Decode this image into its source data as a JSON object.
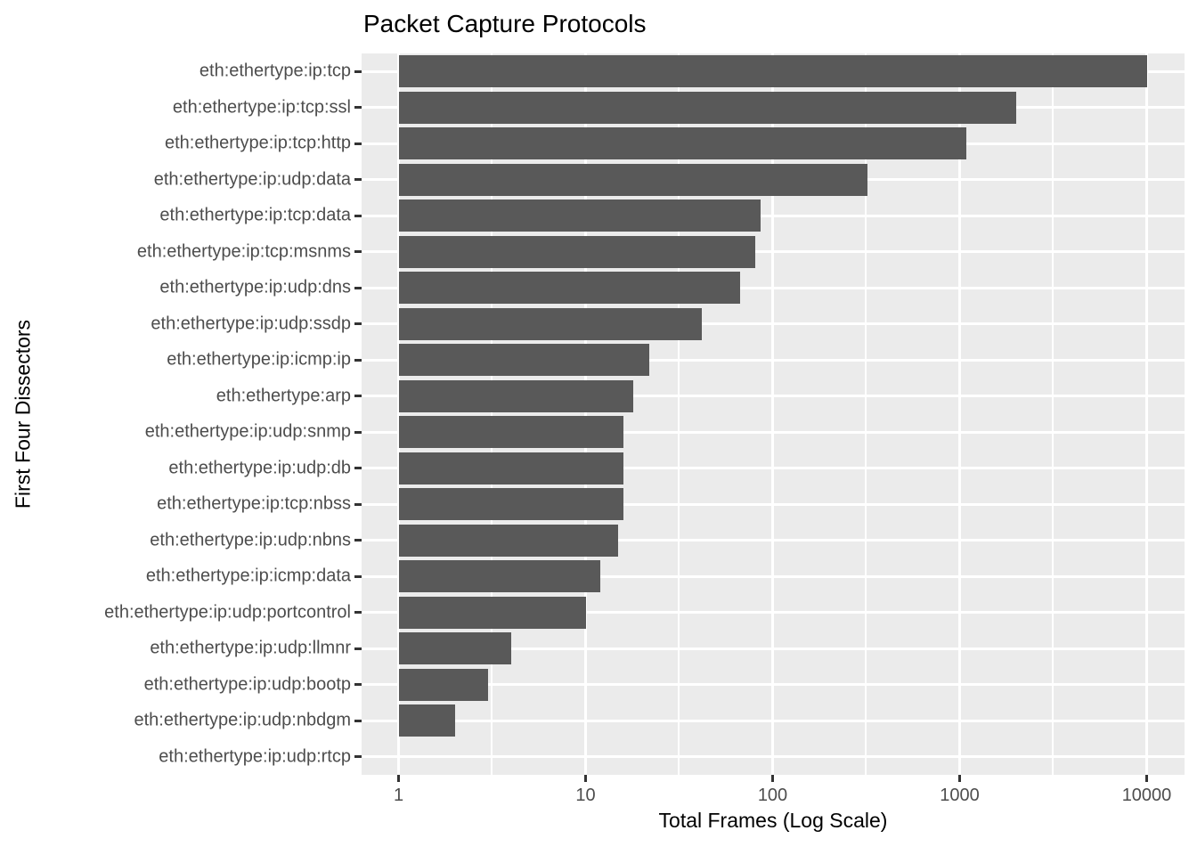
{
  "chart_data": {
    "type": "bar",
    "orientation": "horizontal",
    "title": "Packet Capture Protocols",
    "xlabel": "Total Frames (Log Scale)",
    "ylabel": "First Four Dissectors",
    "x_scale": "log10",
    "xlim": [
      1,
      10000
    ],
    "x_ticks": [
      1,
      10,
      100,
      1000,
      10000
    ],
    "x_tick_labels": [
      "1",
      "10",
      "100",
      "1000",
      "10000"
    ],
    "x_minor_gridlines": [
      3.162,
      31.62,
      316.2,
      3162
    ],
    "grid": "on",
    "legend": "none",
    "categories": [
      "eth:ethertype:ip:tcp",
      "eth:ethertype:ip:tcp:ssl",
      "eth:ethertype:ip:tcp:http",
      "eth:ethertype:ip:udp:data",
      "eth:ethertype:ip:tcp:data",
      "eth:ethertype:ip:tcp:msnms",
      "eth:ethertype:ip:udp:dns",
      "eth:ethertype:ip:udp:ssdp",
      "eth:ethertype:ip:icmp:ip",
      "eth:ethertype:arp",
      "eth:ethertype:ip:udp:snmp",
      "eth:ethertype:ip:udp:db",
      "eth:ethertype:ip:tcp:nbss",
      "eth:ethertype:ip:udp:nbns",
      "eth:ethertype:ip:icmp:data",
      "eth:ethertype:ip:udp:portcontrol",
      "eth:ethertype:ip:udp:llmnr",
      "eth:ethertype:ip:udp:bootp",
      "eth:ethertype:ip:udp:nbdgm",
      "eth:ethertype:ip:udp:rtcp"
    ],
    "values": [
      10000,
      2000,
      1090,
      320,
      86,
      81,
      67,
      42,
      22,
      18,
      16,
      16,
      16,
      15,
      12,
      10,
      4,
      3,
      2,
      1
    ],
    "colors": {
      "bar_fill": "#595959",
      "panel_bg": "#EBEBEB",
      "grid_line": "#FFFFFF",
      "axis_text": "#4D4D4D",
      "title_text": "#000000",
      "tick_mark": "#333333",
      "background": "#FFFFFF"
    }
  }
}
